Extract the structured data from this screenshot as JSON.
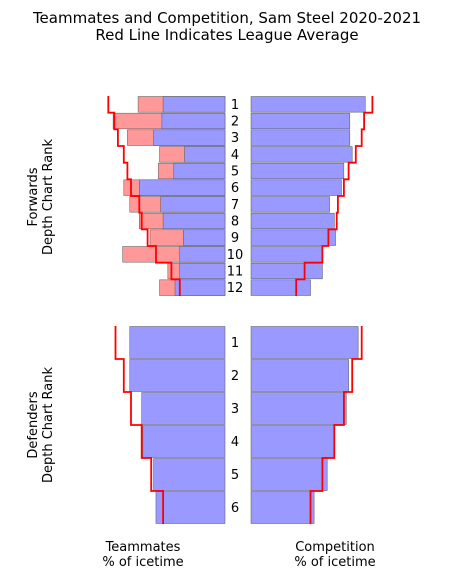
{
  "chart_data": {
    "type": "bar",
    "title": "Teammates and Competition, Sam Steel 2020-2021",
    "subtitle": "Red Line Indicates League Average",
    "panels": {
      "left_xlabel": [
        "Teammates",
        "% of icetime"
      ],
      "right_xlabel": [
        "Competition",
        "% of icetime"
      ]
    },
    "groups": [
      {
        "ylabel": [
          "Forwards",
          "Depth Chart Rank"
        ],
        "ranks": [
          "1",
          "2",
          "3",
          "4",
          "5",
          "6",
          "7",
          "8",
          "9",
          "10",
          "11",
          "12"
        ],
        "series": [
          {
            "name": "teammates_blue",
            "values": [
              0.52,
              0.53,
              0.6,
              0.34,
              0.43,
              0.72,
              0.54,
              0.52,
              0.35,
              0.38,
              0.38,
              0.42
            ]
          },
          {
            "name": "teammates_red",
            "values": [
              0.73,
              0.94,
              0.82,
              0.55,
              0.56,
              0.85,
              0.8,
              0.72,
              0.63,
              0.86,
              0.48,
              0.55
            ]
          },
          {
            "name": "teammates_league_avg",
            "values": [
              0.98,
              0.93,
              0.9,
              0.85,
              0.82,
              0.79,
              0.72,
              0.7,
              0.65,
              0.58,
              0.45,
              0.38
            ]
          },
          {
            "name": "competition_blue",
            "values": [
              0.96,
              0.83,
              0.83,
              0.85,
              0.78,
              0.76,
              0.66,
              0.7,
              0.71,
              0.6,
              0.6,
              0.5
            ]
          },
          {
            "name": "competition_league_avg",
            "values": [
              1.02,
              0.95,
              0.93,
              0.88,
              0.82,
              0.78,
              0.73,
              0.72,
              0.65,
              0.6,
              0.45,
              0.38
            ]
          }
        ]
      },
      {
        "ylabel": [
          "Defenders",
          "Depth Chart Rank"
        ],
        "ranks": [
          "1",
          "2",
          "3",
          "4",
          "5",
          "6"
        ],
        "series": [
          {
            "name": "teammates_blue",
            "values": [
              0.8,
              0.8,
              0.7,
              0.69,
              0.6,
              0.58
            ]
          },
          {
            "name": "teammates_league_avg",
            "values": [
              0.92,
              0.85,
              0.79,
              0.7,
              0.62,
              0.52
            ]
          },
          {
            "name": "competition_blue",
            "values": [
              0.9,
              0.82,
              0.8,
              0.7,
              0.64,
              0.53
            ]
          },
          {
            "name": "competition_league_avg",
            "values": [
              0.93,
              0.85,
              0.78,
              0.7,
              0.6,
              0.5
            ]
          }
        ]
      }
    ],
    "xlim": [
      0,
      1.05
    ],
    "colors": {
      "blue": "#9999ff",
      "red": "#ff9999",
      "line": "#ff0000"
    }
  }
}
